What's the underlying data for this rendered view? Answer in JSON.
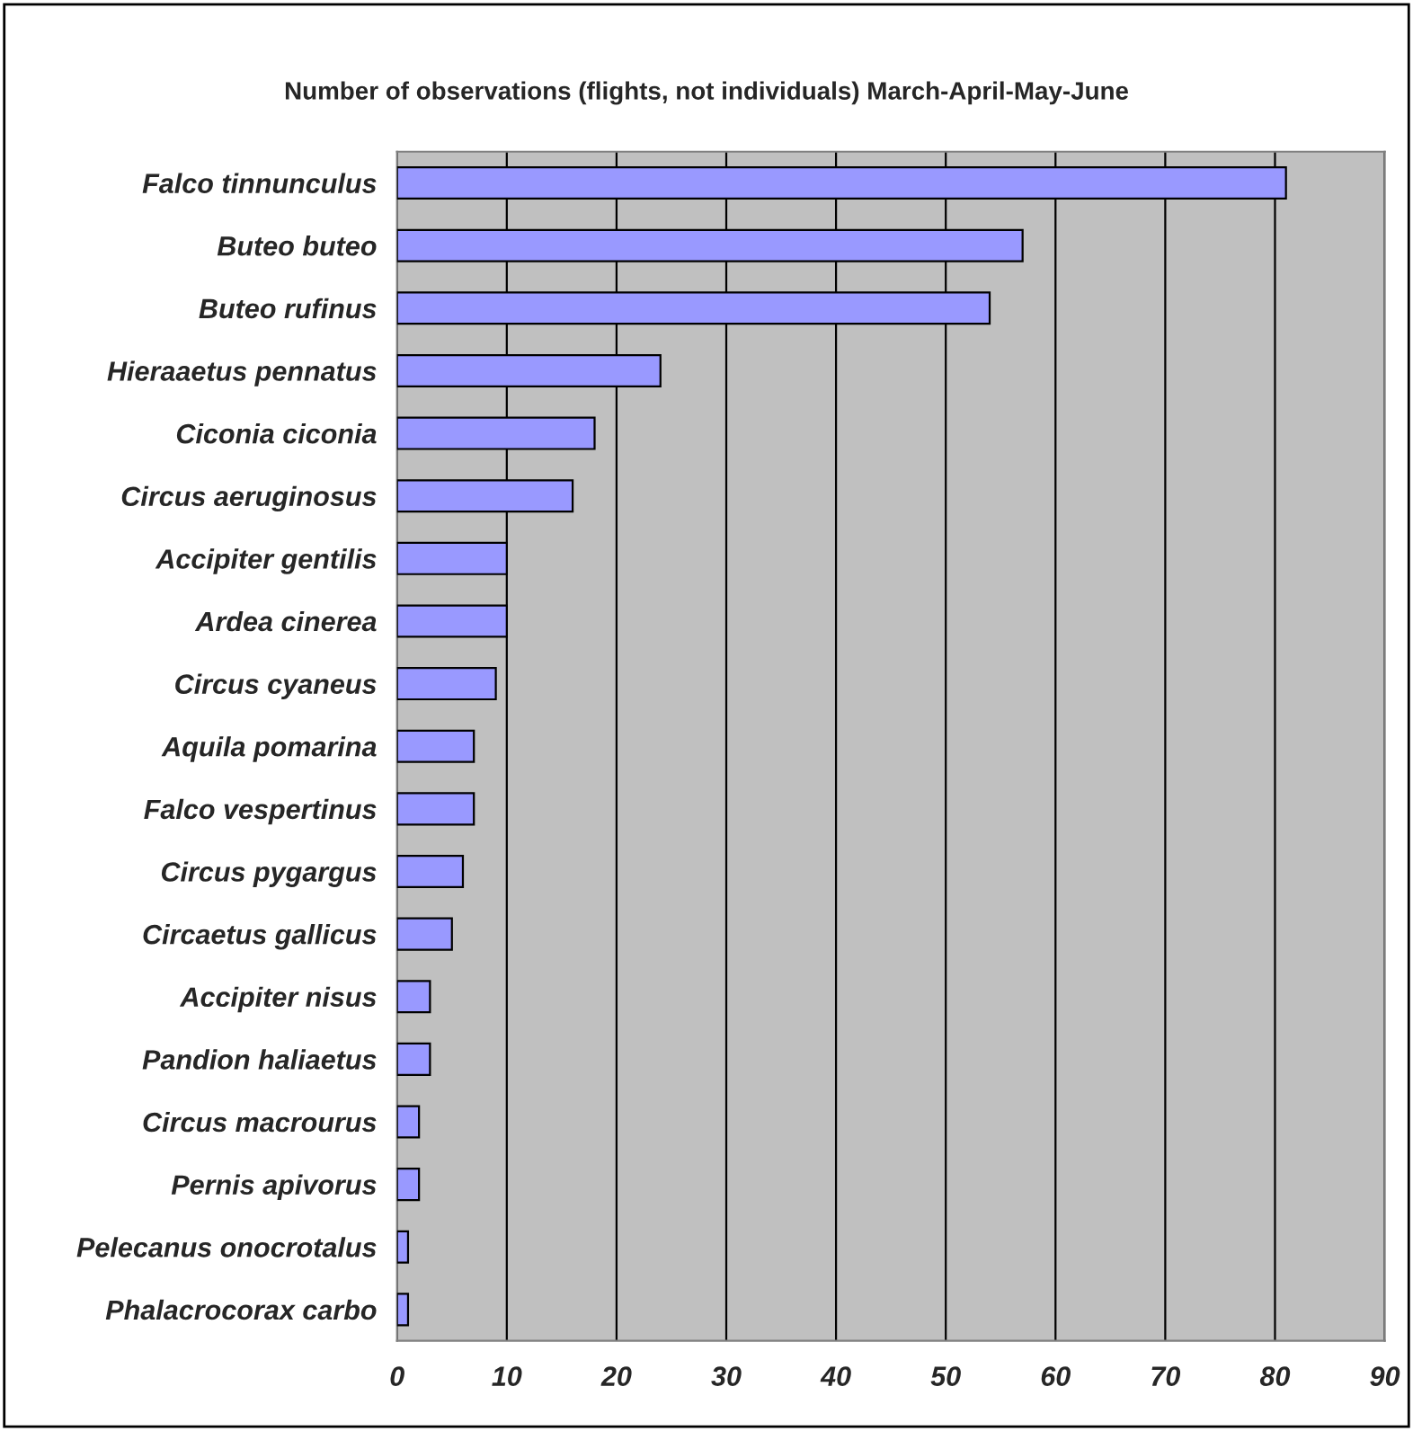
{
  "chart_data": {
    "type": "bar",
    "orientation": "horizontal",
    "title": "Number of observations (flights, not individuals) March-April-May-June",
    "categories": [
      "Falco tinnunculus",
      "Buteo buteo",
      "Buteo rufinus",
      "Hieraaetus pennatus",
      "Ciconia ciconia",
      "Circus aeruginosus",
      "Accipiter gentilis",
      "Ardea cinerea",
      "Circus cyaneus",
      "Aquila pomarina",
      "Falco vespertinus",
      "Circus pygargus",
      "Circaetus gallicus",
      "Accipiter nisus",
      "Pandion haliaetus",
      "Circus macrourus",
      "Pernis apivorus",
      "Pelecanus onocrotalus",
      "Phalacrocorax carbo"
    ],
    "values": [
      81,
      57,
      54,
      24,
      18,
      16,
      10,
      10,
      9,
      7,
      7,
      6,
      5,
      3,
      3,
      2,
      2,
      1,
      1
    ],
    "color": "#9999ff",
    "xlim": [
      0,
      90
    ],
    "xticks": [
      0,
      10,
      20,
      30,
      40,
      50,
      60,
      70,
      80,
      90
    ],
    "grid": "x"
  }
}
